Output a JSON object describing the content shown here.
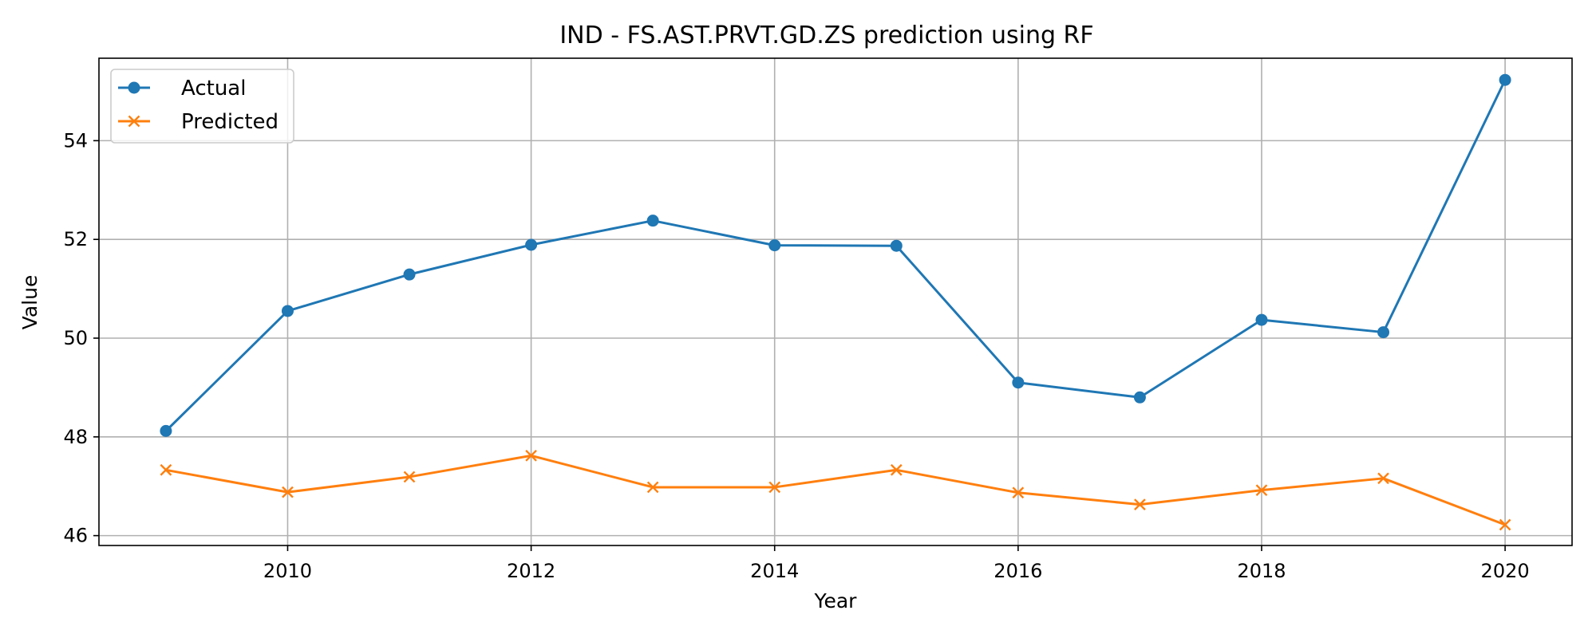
{
  "chart_data": {
    "type": "line",
    "title": "IND - FS.AST.PRVT.GD.ZS prediction using RF",
    "xlabel": "Year",
    "ylabel": "Value",
    "x": [
      2009,
      2010,
      2011,
      2012,
      2013,
      2014,
      2015,
      2016,
      2017,
      2018,
      2019,
      2020
    ],
    "xlim": [
      2008.45,
      2020.55
    ],
    "ylim": [
      45.8,
      55.67
    ],
    "xticks": [
      2010,
      2012,
      2014,
      2016,
      2018,
      2020
    ],
    "yticks": [
      46,
      48,
      50,
      52,
      54
    ],
    "xtick_labels": [
      "2010",
      "2012",
      "2014",
      "2016",
      "2018",
      "2020"
    ],
    "ytick_labels": [
      "46",
      "48",
      "50",
      "52",
      "54"
    ],
    "grid": true,
    "legend_position": "top-left",
    "series": [
      {
        "name": "Actual",
        "color": "#1f77b4",
        "marker": "circle",
        "values": [
          48.12,
          50.55,
          51.29,
          51.89,
          52.38,
          51.88,
          51.87,
          49.1,
          48.8,
          50.37,
          50.12,
          55.23
        ]
      },
      {
        "name": "Predicted",
        "color": "#ff7f0e",
        "marker": "x",
        "values": [
          47.33,
          46.88,
          47.19,
          47.62,
          46.98,
          46.98,
          47.33,
          46.87,
          46.63,
          46.92,
          47.16,
          46.22
        ]
      }
    ]
  }
}
